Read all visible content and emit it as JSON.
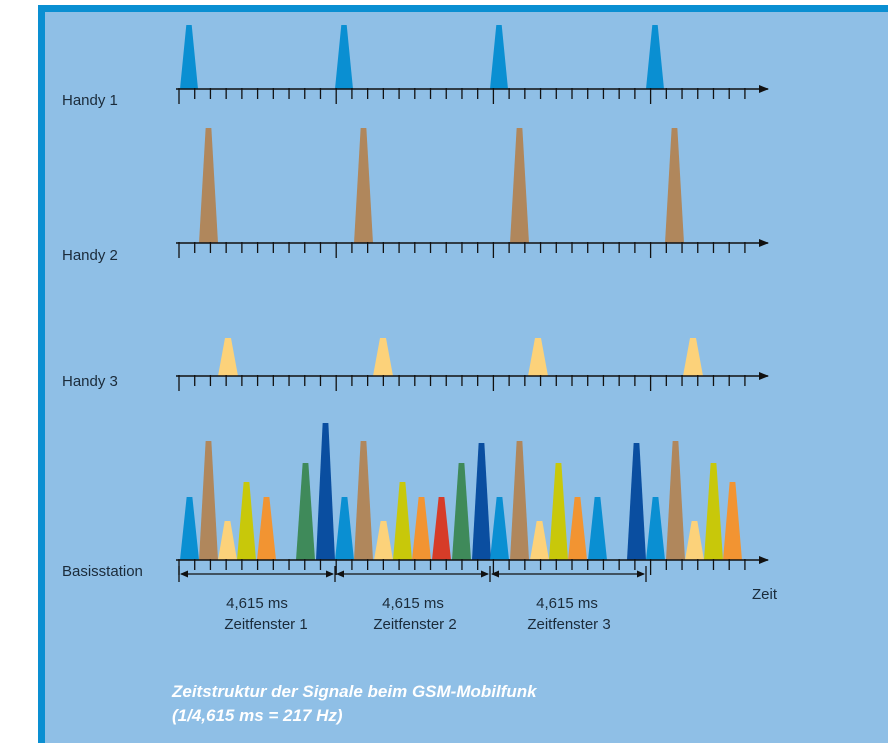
{
  "rows": [
    {
      "label": "Handy 1"
    },
    {
      "label": "Handy 2"
    },
    {
      "label": "Handy 3"
    },
    {
      "label": "Basisstation"
    }
  ],
  "axis_label": "Zeit",
  "windows": [
    {
      "duration": "4,615 ms",
      "name": "Zeitfenster 1"
    },
    {
      "duration": "4,615 ms",
      "name": "Zeitfenster 2"
    },
    {
      "duration": "4,615 ms",
      "name": "Zeitfenster 3"
    }
  ],
  "caption": {
    "line1": "Zeitstruktur der Signale beim GSM-Mobilfunk",
    "line2": "(1/4,615 ms = 217 Hz)"
  },
  "colors": {
    "frame": "#0a8fd2",
    "background": "#8fbfe6",
    "handy1": "#0a8fd2",
    "handy2": "#b0875c",
    "handy3": "#fcd27a",
    "slot_sequence": [
      "#0a8fd2",
      "#b0875c",
      "#fcd27a",
      "#c8c80a",
      "#f29432",
      "#3f8a5a",
      "#0a4ea0",
      "#d63c28"
    ]
  }
}
